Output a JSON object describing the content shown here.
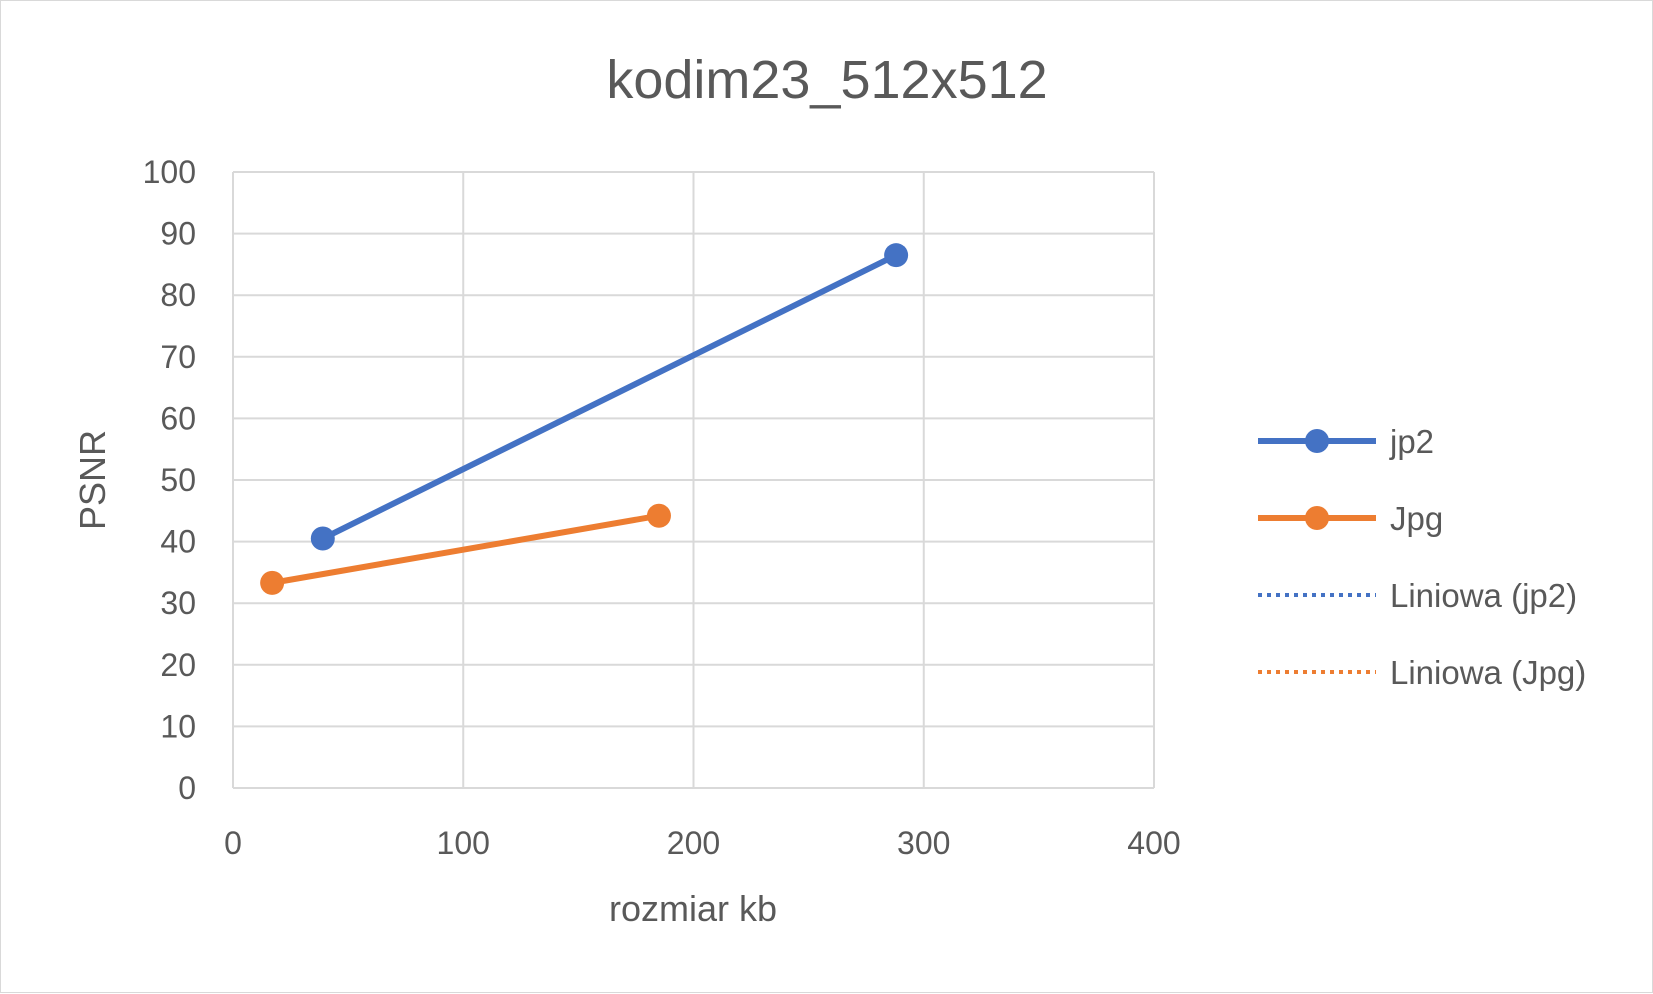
{
  "chart_data": {
    "type": "scatter",
    "title": "kodim23_512x512",
    "xlabel": "rozmiar kb",
    "ylabel": "PSNR",
    "xlim": [
      0,
      400
    ],
    "ylim": [
      0,
      100
    ],
    "x_ticks": [
      0,
      100,
      200,
      300,
      400
    ],
    "y_ticks": [
      0,
      10,
      20,
      30,
      40,
      50,
      60,
      70,
      80,
      90,
      100
    ],
    "grid": true,
    "legend_position": "right",
    "series": [
      {
        "name": "jp2",
        "color": "#4472c4",
        "style": "line-markers",
        "points": [
          [
            39,
            40.5
          ],
          [
            288,
            86.5
          ]
        ]
      },
      {
        "name": "Jpg",
        "color": "#ed7d31",
        "style": "line-markers",
        "points": [
          [
            17,
            33.3
          ],
          [
            185,
            44.2
          ]
        ]
      }
    ],
    "trendlines": [
      {
        "name": "Liniowa (jp2)",
        "color": "#4472c4",
        "style": "dotted"
      },
      {
        "name": "Liniowa (Jpg)",
        "color": "#ed7d31",
        "style": "dotted"
      }
    ]
  }
}
